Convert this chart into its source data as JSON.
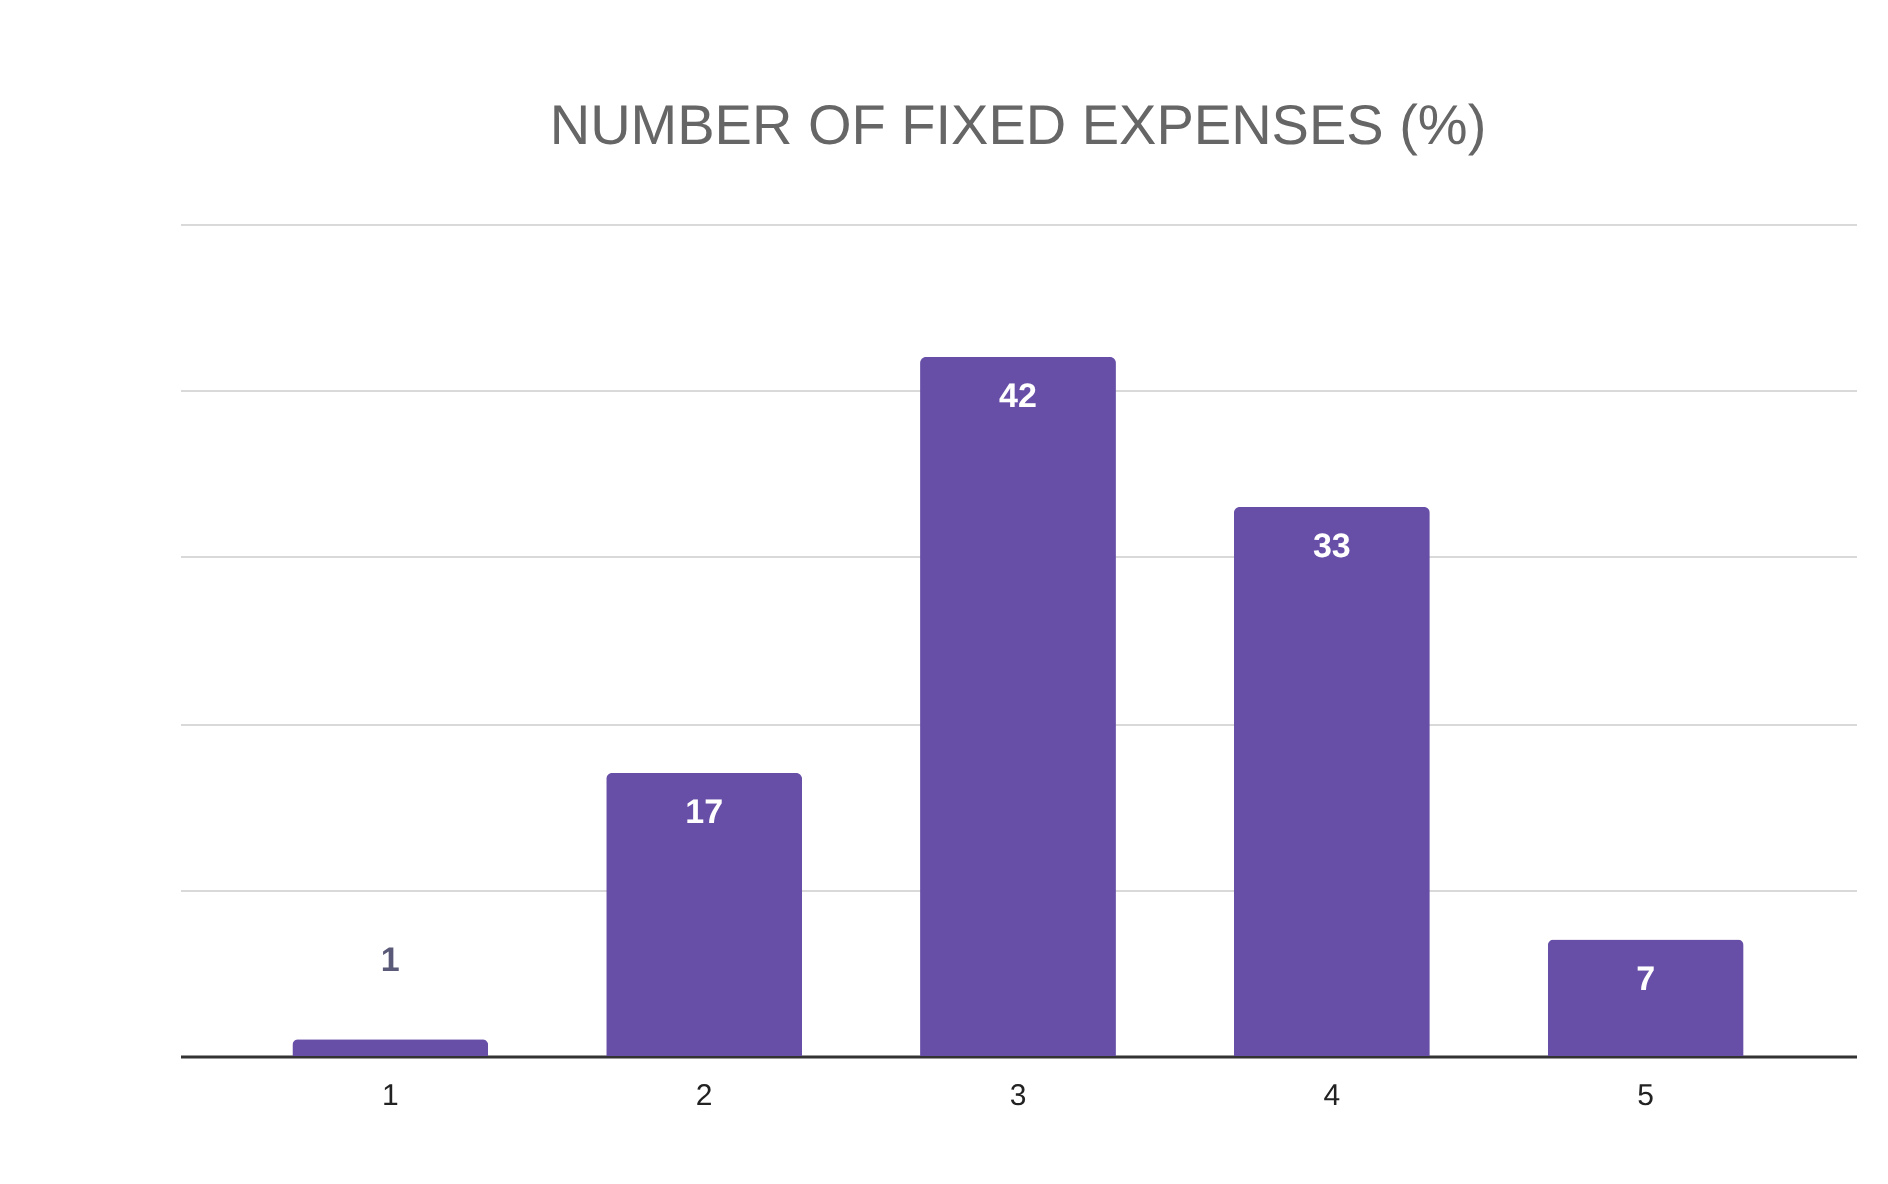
{
  "chart_data": {
    "type": "bar",
    "title": "NUMBER OF FIXED EXPENSES (%)",
    "categories": [
      "1",
      "2",
      "3",
      "4",
      "5"
    ],
    "values": [
      1,
      17,
      42,
      33,
      7
    ],
    "color": "#674ea7",
    "ylim": [
      0,
      50
    ],
    "yticks": [
      0,
      10,
      20,
      30,
      40,
      50
    ],
    "grid": "y",
    "tick_labels": "x",
    "data_labels": true
  }
}
